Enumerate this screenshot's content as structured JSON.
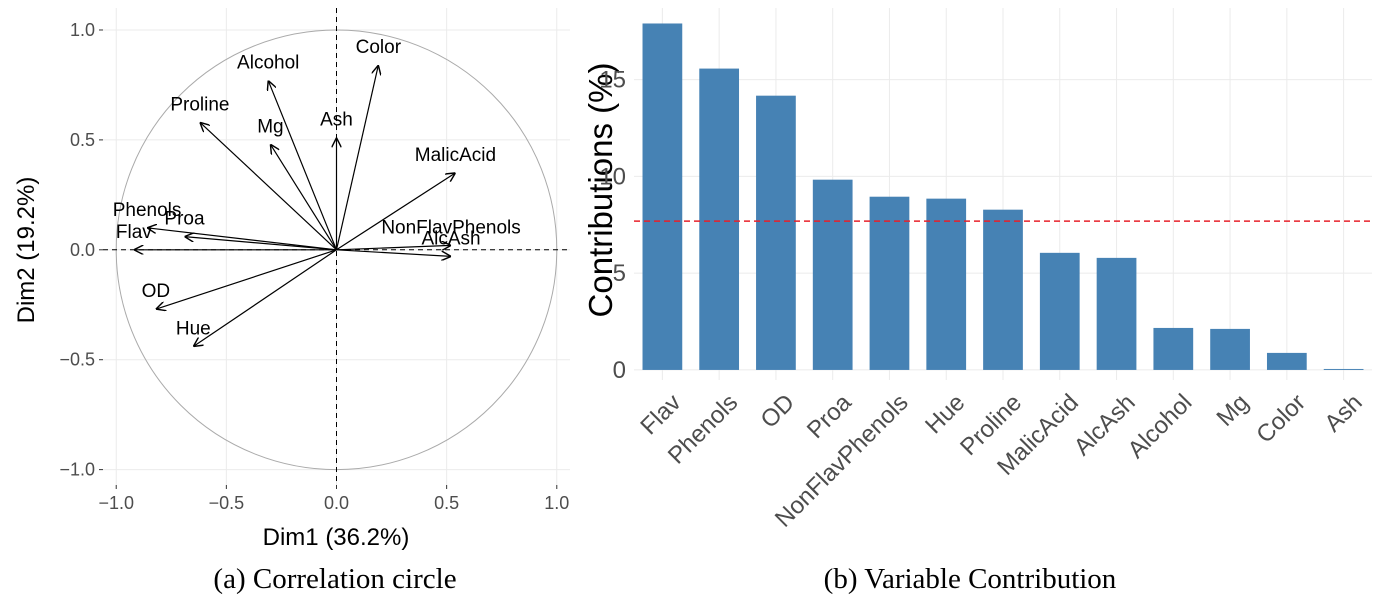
{
  "chart_data": [
    {
      "type": "biplot",
      "caption": "(a) Correlation circle",
      "x_label": "Dim1 (36.2%)",
      "y_label": "Dim2 (19.2%)",
      "categories": [
        "Color",
        "Alcohol",
        "Proline",
        "Mg",
        "Ash",
        "MalicAcid",
        "NonFlavPhenols",
        "AlcAsh",
        "Phenols",
        "Proa",
        "Flav",
        "OD",
        "Hue"
      ],
      "x": [
        0.19,
        -0.31,
        -0.62,
        -0.3,
        0.0,
        0.54,
        0.52,
        0.52,
        -0.86,
        -0.69,
        -0.92,
        -0.82,
        -0.65
      ],
      "y": [
        0.84,
        0.77,
        0.58,
        0.48,
        0.51,
        0.35,
        0.02,
        -0.03,
        0.1,
        0.06,
        0.0,
        -0.27,
        -0.44
      ],
      "circle_radius": 1,
      "color": "#000000",
      "grid": true,
      "xlim": [
        -1.06,
        1.06
      ],
      "ylim": [
        -1.07,
        1.1
      ],
      "xticks": [
        {
          "value": -1.0,
          "label": "−1.0"
        },
        {
          "value": -0.5,
          "label": "−0.5"
        },
        {
          "value": 0.0,
          "label": "0.0"
        },
        {
          "value": 0.5,
          "label": "0.5"
        },
        {
          "value": 1.0,
          "label": "1.0"
        }
      ],
      "yticks": [
        {
          "value": -1.0,
          "label": "−1.0"
        },
        {
          "value": -0.5,
          "label": "−0.5"
        },
        {
          "value": 0.0,
          "label": "0.0"
        },
        {
          "value": 0.5,
          "label": "0.5"
        },
        {
          "value": 1.0,
          "label": "1.0"
        }
      ]
    },
    {
      "type": "bar",
      "caption": "(b) Variable Contribution",
      "y_label": "Contributions (%)",
      "categories": [
        "Flav",
        "Phenols",
        "OD",
        "Proa",
        "NonFlavPhenols",
        "Hue",
        "Proline",
        "MalicAcid",
        "AlcAsh",
        "Alcohol",
        "Mg",
        "Color",
        "Ash"
      ],
      "values": [
        17.9,
        15.57,
        14.17,
        9.83,
        8.95,
        8.85,
        8.28,
        6.05,
        5.79,
        2.17,
        2.12,
        0.88,
        0.05
      ],
      "color": "#4682b4",
      "reference_line": 7.69,
      "reference_color": "#e8202a",
      "grid": true,
      "ylim": [
        -0.52,
        18.7
      ],
      "yticks": [
        0,
        5,
        10,
        15
      ]
    }
  ]
}
